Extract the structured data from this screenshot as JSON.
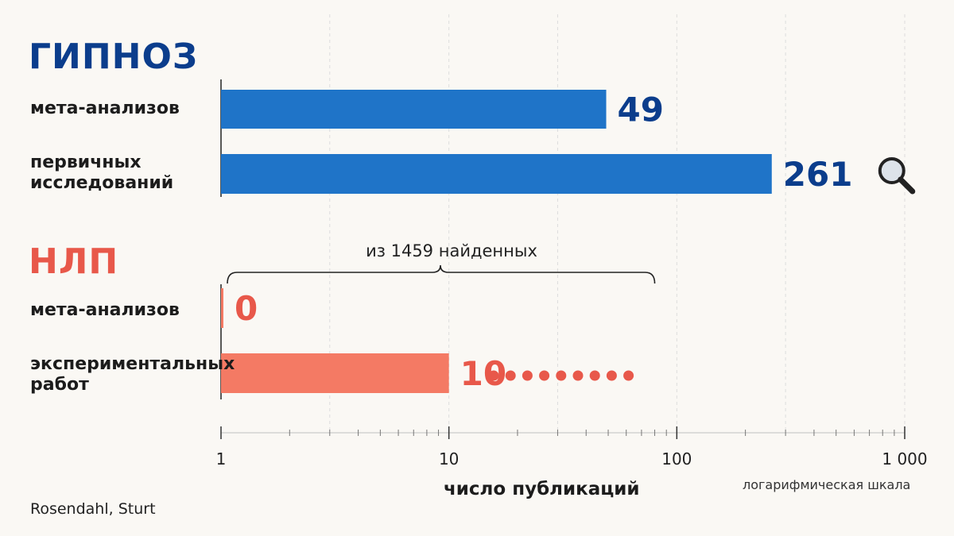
{
  "chart_data": {
    "type": "bar",
    "orientation": "horizontal",
    "xscale": "log",
    "xlim": [
      1,
      1000
    ],
    "xticks": [
      1,
      10,
      100,
      1000
    ],
    "xtick_labels": [
      "1",
      "10",
      "100",
      "1 000"
    ],
    "xlabel": "число публикаций",
    "scale_note": "логарифмическая шкала",
    "grid": true,
    "groups": [
      {
        "title": "ГИПНОЗ",
        "color": "#1f74c8",
        "label_color": "#0b3d8c",
        "bars": [
          {
            "label": "мета-анализов",
            "value": 49,
            "value_label": "49"
          },
          {
            "label": "первичных исследований",
            "value": 261,
            "value_label": "261",
            "icon": "magnifier-icon"
          }
        ]
      },
      {
        "title": "НЛП",
        "color": "#f47a64",
        "label_color": "#e8584a",
        "bars": [
          {
            "label": "мета-анализов",
            "value": 0,
            "value_label": "0"
          },
          {
            "label": "экспериментальных работ",
            "value": 10,
            "value_label": "10",
            "trail_dots": 9
          }
        ]
      }
    ],
    "annotation": {
      "text": "из 1459 найденных",
      "from": 1,
      "to": 80
    }
  },
  "source": "Rosendahl, Sturt"
}
